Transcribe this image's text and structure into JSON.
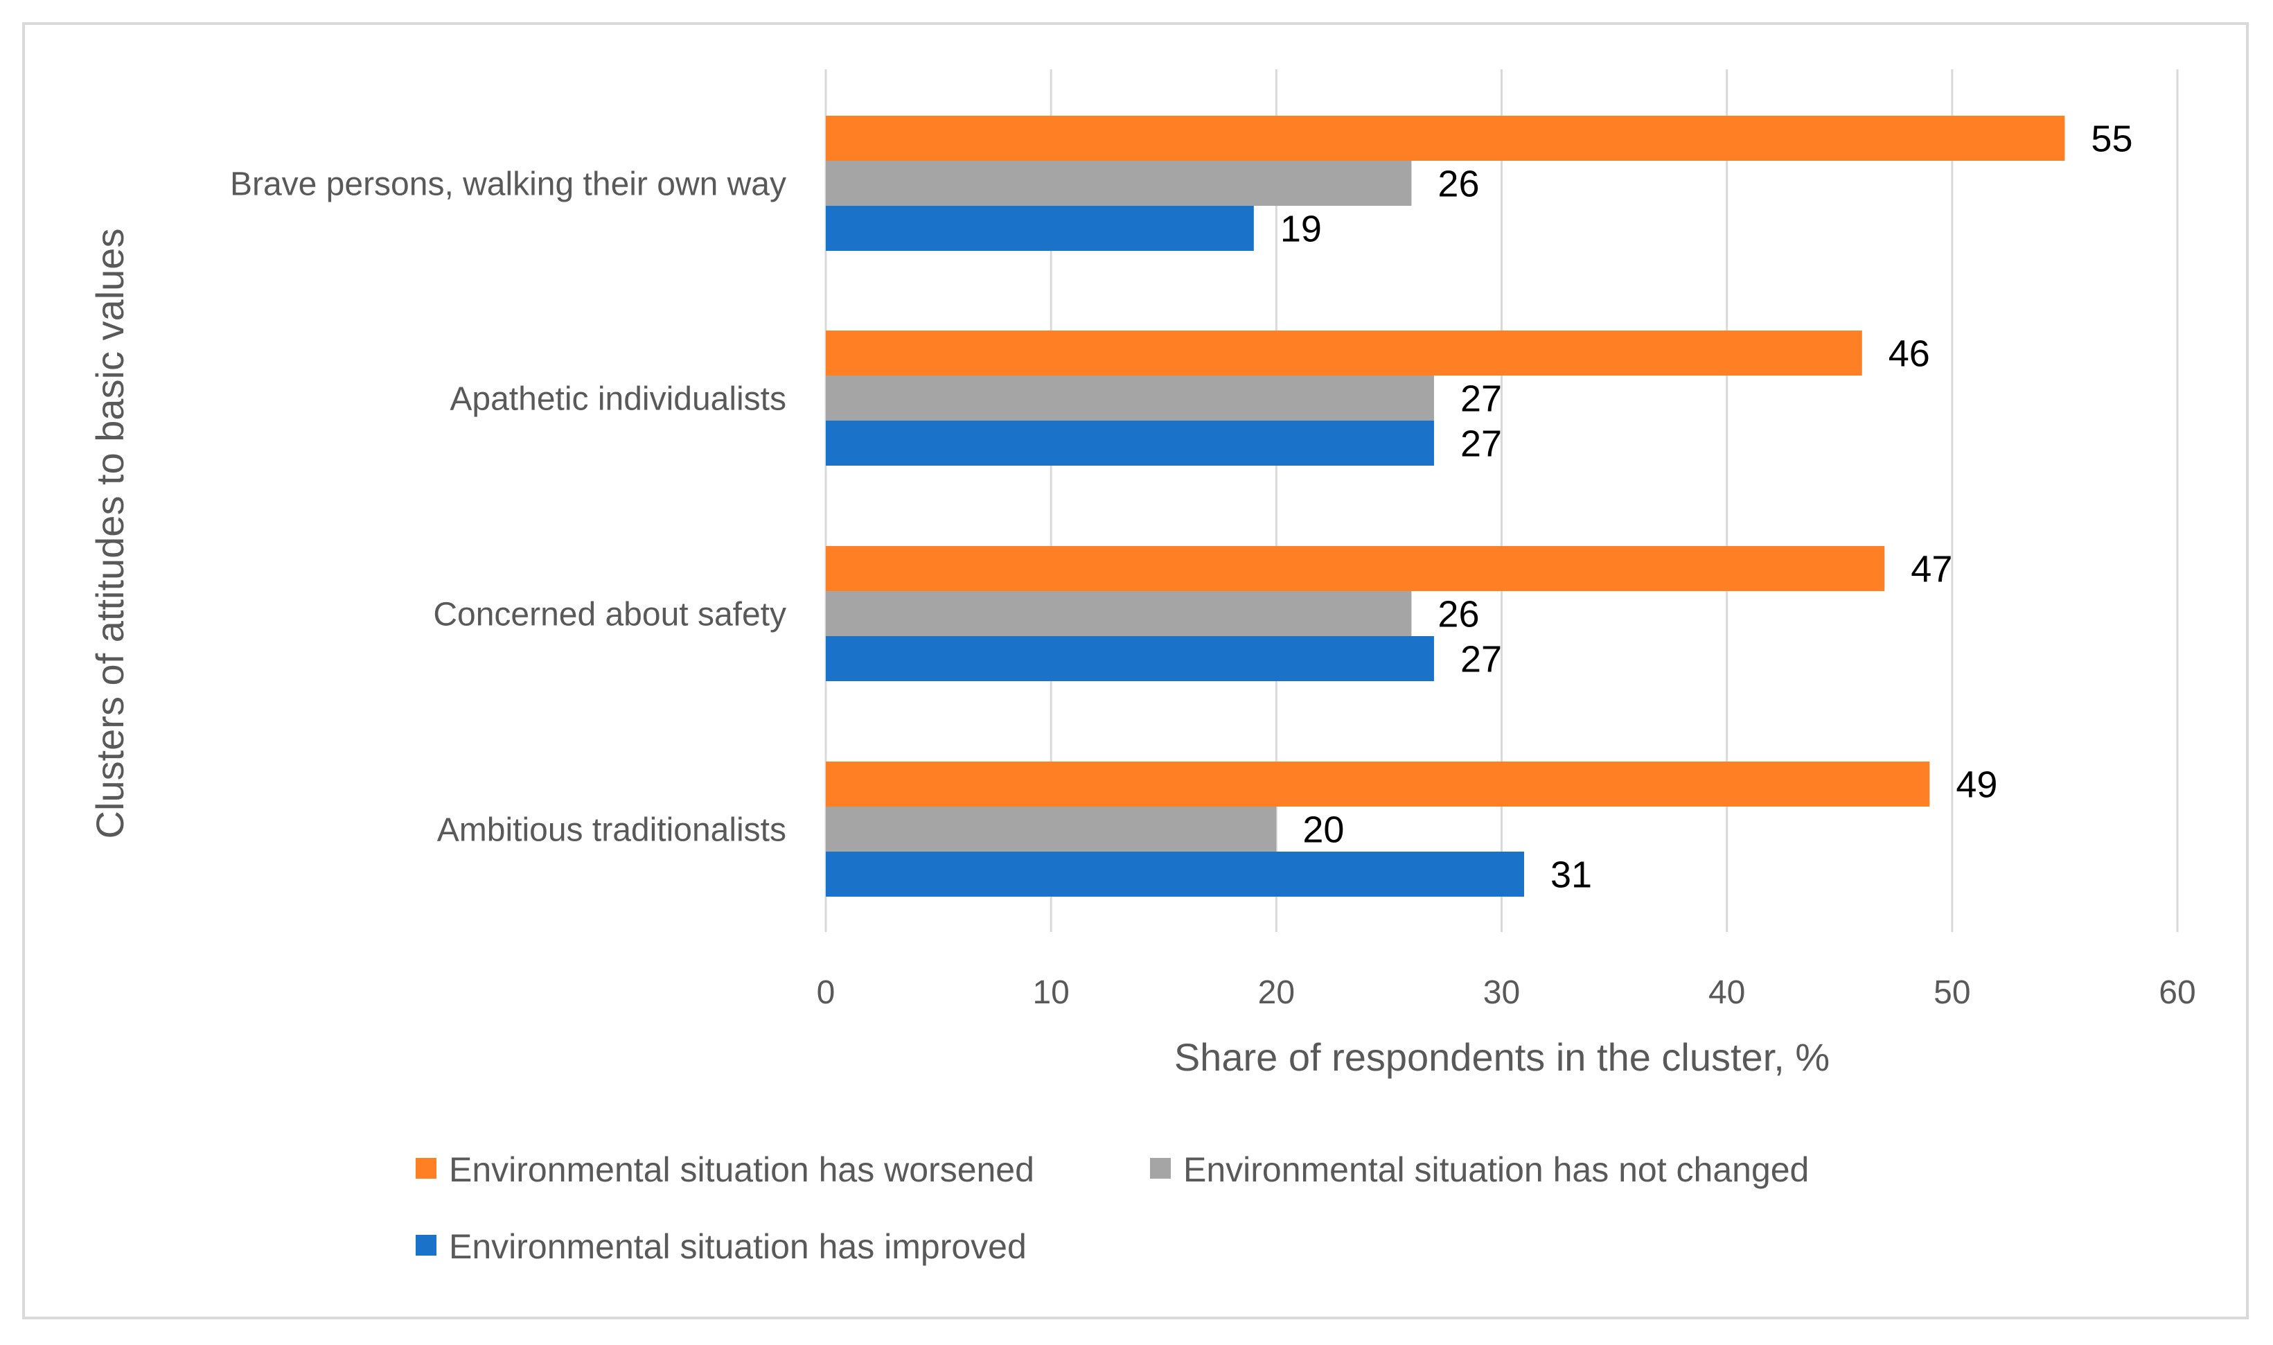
{
  "chart_data": {
    "type": "bar",
    "orientation": "horizontal",
    "title": "",
    "xlabel": "Share of respondents in the cluster, %",
    "ylabel": "Clusters of attitudes to basic values",
    "xlim": [
      0,
      60
    ],
    "x_ticks": [
      0,
      10,
      20,
      30,
      40,
      50,
      60
    ],
    "grid": true,
    "legend_position": "bottom",
    "categories": [
      "Brave persons, walking their own way",
      "Apathetic individualists",
      "Concerned about safety",
      "Ambitious traditionalists"
    ],
    "series": [
      {
        "name": "Environmental situation has worsened",
        "color": "#fe7f24",
        "values": [
          55,
          46,
          47,
          49
        ]
      },
      {
        "name": "Environmental situation has not changed",
        "color": "#a5a5a5",
        "values": [
          26,
          27,
          26,
          20
        ]
      },
      {
        "name": "Environmental situation has improved",
        "color": "#1a73c9",
        "values": [
          19,
          27,
          27,
          31
        ]
      }
    ]
  }
}
